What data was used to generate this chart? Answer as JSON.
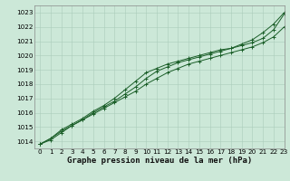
{
  "xlabel": "Graphe pression niveau de la mer (hPa)",
  "xlim": [
    -0.5,
    23
  ],
  "ylim": [
    1013.5,
    1023.5
  ],
  "yticks": [
    1014,
    1015,
    1016,
    1017,
    1018,
    1019,
    1020,
    1021,
    1022,
    1023
  ],
  "xticks": [
    0,
    1,
    2,
    3,
    4,
    5,
    6,
    7,
    8,
    9,
    10,
    11,
    12,
    13,
    14,
    15,
    16,
    17,
    18,
    19,
    20,
    21,
    22,
    23
  ],
  "background_color": "#cce8d8",
  "grid_color": "#aaccbb",
  "line_color": "#1a5e28",
  "series1_x": [
    0,
    1,
    2,
    3,
    4,
    5,
    6,
    7,
    8,
    9,
    10,
    11,
    12,
    13,
    14,
    15,
    16,
    17,
    18,
    19,
    20,
    21,
    22,
    23
  ],
  "series1_y": [
    1013.8,
    1014.1,
    1014.6,
    1015.1,
    1015.5,
    1015.9,
    1016.3,
    1016.7,
    1017.1,
    1017.5,
    1018.0,
    1018.4,
    1018.8,
    1019.1,
    1019.4,
    1019.6,
    1019.8,
    1020.0,
    1020.2,
    1020.4,
    1020.6,
    1020.9,
    1021.3,
    1022.0
  ],
  "series2_x": [
    0,
    1,
    2,
    3,
    4,
    5,
    6,
    7,
    8,
    9,
    10,
    11,
    12,
    13,
    14,
    15,
    16,
    17,
    18,
    19,
    20,
    21,
    22,
    23
  ],
  "series2_y": [
    1013.8,
    1014.2,
    1014.7,
    1015.1,
    1015.5,
    1016.0,
    1016.4,
    1016.8,
    1017.3,
    1017.8,
    1018.4,
    1018.9,
    1019.2,
    1019.5,
    1019.7,
    1019.9,
    1020.1,
    1020.3,
    1020.5,
    1020.7,
    1020.9,
    1021.2,
    1021.8,
    1022.9
  ],
  "series3_x": [
    0,
    1,
    2,
    3,
    4,
    5,
    6,
    7,
    8,
    9,
    10,
    11,
    12,
    13,
    14,
    15,
    16,
    17,
    18,
    19,
    20,
    21,
    22,
    23
  ],
  "series3_y": [
    1013.8,
    1014.2,
    1014.8,
    1015.2,
    1015.6,
    1016.1,
    1016.5,
    1017.0,
    1017.6,
    1018.2,
    1018.8,
    1019.1,
    1019.4,
    1019.6,
    1019.8,
    1020.0,
    1020.2,
    1020.4,
    1020.5,
    1020.8,
    1021.1,
    1021.6,
    1022.2,
    1023.0
  ],
  "xlabel_fontsize": 6.5,
  "tick_fontsize": 5.2,
  "ylabel_fontsize": 5.2
}
